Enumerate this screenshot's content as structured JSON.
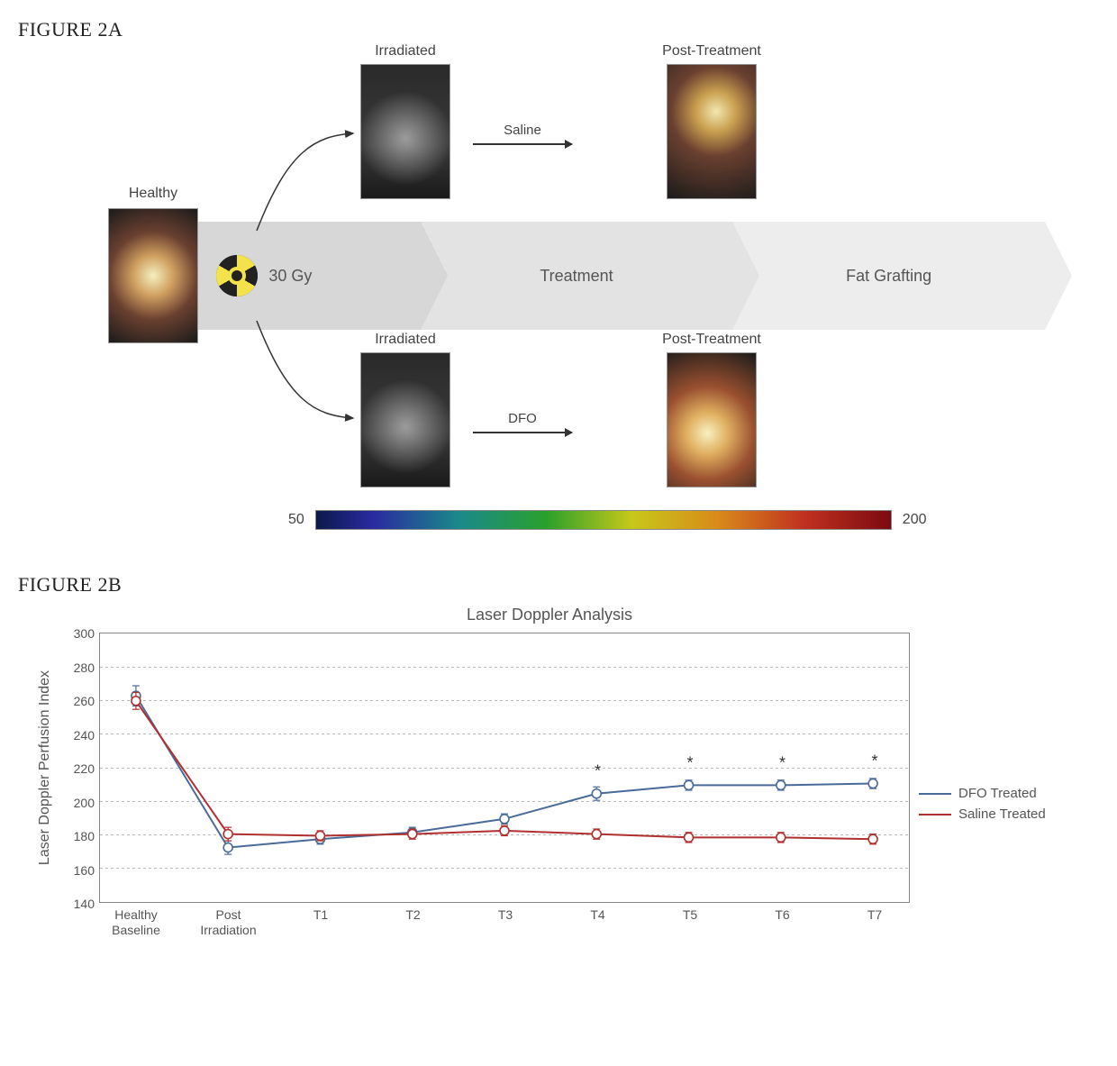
{
  "figureA": {
    "label": "FIGURE 2A",
    "healthy_label": "Healthy",
    "irradiated_label": "Irradiated",
    "post_treatment_label": "Post-Treatment",
    "radiation_dose": "30 Gy",
    "step_treatment": "Treatment",
    "step_fatgraft": "Fat Grafting",
    "saline_label": "Saline",
    "dfo_label": "DFO",
    "colorbar_min": "50",
    "colorbar_max": "200",
    "colorbar_gradient": [
      "#0a1a4a",
      "#2a2aa0",
      "#1a8a8a",
      "#2aa02a",
      "#c8c81a",
      "#d88a1a",
      "#c03020",
      "#7a0a10"
    ]
  },
  "figureB": {
    "label": "FIGURE 2B",
    "chart": {
      "type": "line",
      "title": "Laser Doppler Analysis",
      "ylabel": "Laser Doppler Perfusion Index",
      "title_fontsize": 18,
      "label_fontsize": 16,
      "tick_fontsize": 14,
      "ylim": [
        140,
        300
      ],
      "ytick_step": 20,
      "yticks": [
        140,
        160,
        180,
        200,
        220,
        240,
        260,
        280,
        300
      ],
      "x_categories": [
        "Healthy\nBaseline",
        "Post\nIrradiation",
        "T1",
        "T2",
        "T3",
        "T4",
        "T5",
        "T6",
        "T7"
      ],
      "grid_color": "#bbbbbb",
      "grid_style": "dotted",
      "background_color": "#ffffff",
      "border_color": "#888888",
      "marker": "circle",
      "marker_size": 5,
      "line_width": 2,
      "series": [
        {
          "name": "DFO Treated",
          "color": "#4a6a9a",
          "values": [
            263,
            173,
            178,
            182,
            190,
            205,
            210,
            210,
            211
          ],
          "error": [
            6,
            4,
            3,
            3,
            3,
            4,
            3,
            3,
            3
          ]
        },
        {
          "name": "Saline Treated",
          "color": "#b03030",
          "values": [
            260,
            181,
            180,
            181,
            183,
            181,
            179,
            179,
            178
          ],
          "error": [
            5,
            4,
            3,
            3,
            3,
            3,
            3,
            3,
            3
          ]
        }
      ],
      "significance_marks": {
        "symbol": "*",
        "x_indices": [
          5,
          6,
          7,
          8
        ]
      },
      "legend_position": "right"
    }
  }
}
